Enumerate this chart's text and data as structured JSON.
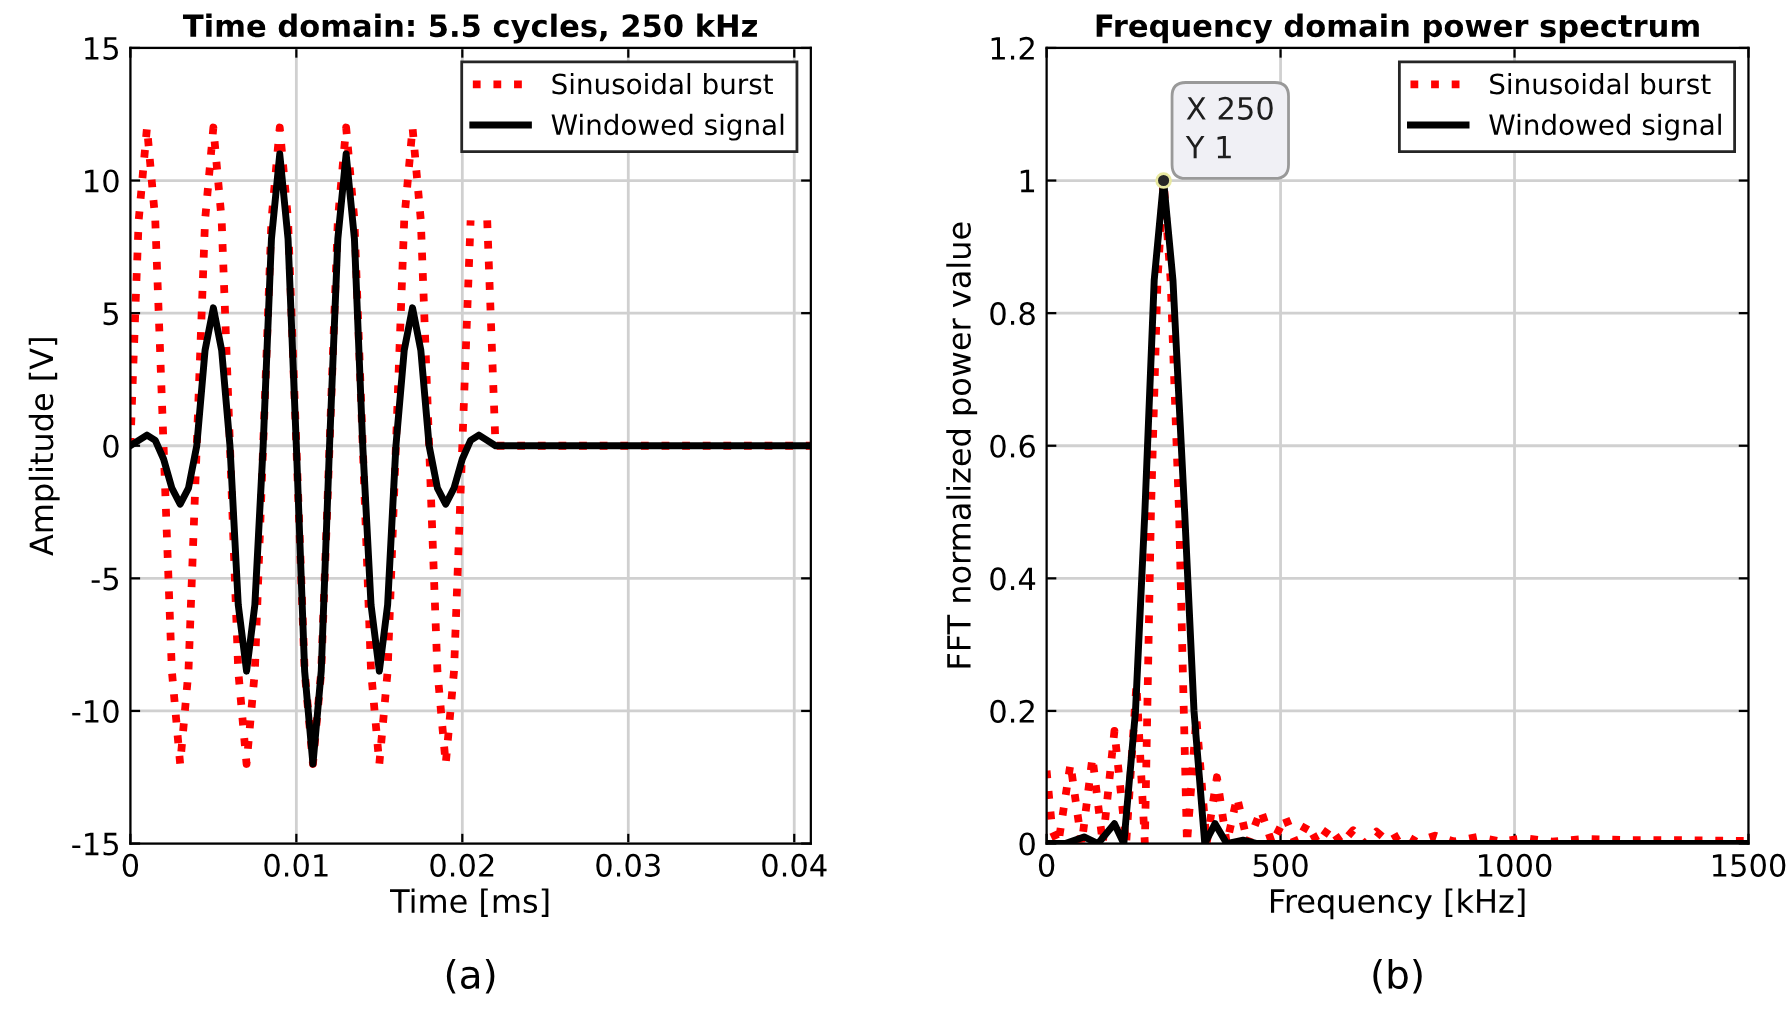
{
  "chart_data": [
    {
      "type": "line",
      "title": "Time domain: 5.5 cycles, 250 kHz",
      "xlabel": "Time [ms]",
      "ylabel": "Amplitude [V]",
      "xlim": [
        0,
        0.041
      ],
      "xticks": [
        0,
        0.01,
        0.02,
        0.03,
        0.04
      ],
      "ylim": [
        -15,
        15
      ],
      "yticks": [
        -15,
        -10,
        -5,
        0,
        5,
        10,
        15
      ],
      "grid": true,
      "legend": "top right",
      "annotations": [
        "(a)"
      ],
      "series": [
        {
          "name": "Sinusoidal burst",
          "color": "#ff0000",
          "line_style": "dotted",
          "x": [
            0,
            0.0005,
            0.001,
            0.0015,
            0.002,
            0.0025,
            0.003,
            0.0035,
            0.004,
            0.0045,
            0.005,
            0.0055,
            0.006,
            0.0065,
            0.007,
            0.0075,
            0.008,
            0.0085,
            0.009,
            0.0095,
            0.01,
            0.0105,
            0.011,
            0.0115,
            0.012,
            0.0125,
            0.013,
            0.0135,
            0.014,
            0.0145,
            0.015,
            0.0155,
            0.016,
            0.0165,
            0.017,
            0.0175,
            0.018,
            0.0185,
            0.019,
            0.0195,
            0.02,
            0.0205,
            0.021,
            0.0215,
            0.022,
            0.041
          ],
          "values": [
            0,
            8.5,
            12,
            8.5,
            0,
            -8.5,
            -12,
            -8.5,
            0,
            8.5,
            12,
            8.5,
            0,
            -8.5,
            -12,
            -8.5,
            0,
            8.5,
            12,
            8.5,
            0,
            -8.5,
            -12,
            -8.5,
            0,
            8.5,
            12,
            8.5,
            0,
            -8.5,
            -12,
            -8.5,
            0,
            8.5,
            12,
            8.5,
            0,
            -8.5,
            -12,
            -8.5,
            0,
            8.5,
            null,
            8.5,
            0,
            0
          ]
        },
        {
          "name": "Windowed signal",
          "color": "#000000",
          "line_style": "solid",
          "x": [
            0,
            0.0005,
            0.001,
            0.0015,
            0.002,
            0.0025,
            0.003,
            0.0035,
            0.004,
            0.0045,
            0.005,
            0.0055,
            0.006,
            0.0065,
            0.007,
            0.0075,
            0.008,
            0.0085,
            0.009,
            0.0095,
            0.01,
            0.0105,
            0.011,
            0.0115,
            0.012,
            0.0125,
            0.013,
            0.0135,
            0.014,
            0.0145,
            0.015,
            0.0155,
            0.016,
            0.0165,
            0.017,
            0.0175,
            0.018,
            0.0185,
            0.019,
            0.0195,
            0.02,
            0.0205,
            0.021,
            0.0215,
            0.022,
            0.041
          ],
          "values": [
            0,
            0.2,
            0.4,
            0.2,
            -0.5,
            -1.6,
            -2.2,
            -1.6,
            0,
            3.6,
            5.2,
            3.6,
            0,
            -6,
            -8.5,
            -6,
            0,
            7.8,
            11,
            7.8,
            0,
            -8.5,
            -12,
            -8.5,
            0,
            7.8,
            11,
            7.8,
            0,
            -6,
            -8.5,
            -6,
            0,
            3.6,
            5.2,
            3.6,
            0,
            -1.6,
            -2.2,
            -1.6,
            -0.5,
            0.2,
            0.4,
            0.2,
            0,
            0
          ]
        }
      ]
    },
    {
      "type": "line",
      "title": "Frequency domain power spectrum",
      "xlabel": "Frequency [kHz]",
      "ylabel": "FFT normalized power value",
      "xlim": [
        0,
        1500
      ],
      "xticks": [
        0,
        500,
        1000,
        1500
      ],
      "ylim": [
        0,
        1.2
      ],
      "yticks": [
        0,
        0.2,
        0.4,
        0.6,
        0.8,
        1,
        1.2
      ],
      "grid": true,
      "legend": "top right",
      "annotations": [
        {
          "text": "X 250\nY 1",
          "x": 250,
          "y": 1
        },
        "(b)"
      ],
      "series": [
        {
          "name": "Sinusoidal burst",
          "color": "#ff0000",
          "line_style": "dotted",
          "x": [
            0,
            12,
            25,
            51,
            75,
            98,
            120,
            145,
            170,
            192,
            210,
            223,
            237,
            250,
            265,
            283,
            300,
            320,
            342,
            364,
            385,
            407,
            430,
            458,
            482,
            510,
            533,
            557,
            580,
            605,
            630,
            655,
            680,
            705,
            730,
            760,
            790,
            830,
            870,
            920,
            970,
            1020,
            1080,
            1150,
            1250,
            1350,
            1500
          ],
          "values": [
            0.11,
            0.02,
            0,
            0.12,
            0,
            0.13,
            0,
            0.17,
            0,
            0.24,
            0,
            0.5,
            0.85,
            1,
            0.85,
            0.5,
            0,
            0.19,
            0,
            0.1,
            0,
            0.07,
            0,
            0.05,
            0,
            0.04,
            0,
            0.03,
            0,
            0.025,
            0,
            0.02,
            0,
            0.018,
            0.003,
            0.015,
            0.003,
            0.012,
            0.003,
            0.01,
            0.003,
            0.008,
            0.003,
            0.007,
            0.005,
            0.005,
            0.004
          ]
        },
        {
          "name": "Windowed signal",
          "color": "#000000",
          "line_style": "solid",
          "x": [
            0,
            40,
            80,
            110,
            145,
            165,
            190,
            210,
            230,
            250,
            270,
            295,
            315,
            338,
            360,
            385,
            420,
            450,
            1500
          ],
          "values": [
            0,
            0,
            0.01,
            0,
            0.03,
            0,
            0.2,
            0.5,
            0.85,
            1,
            0.85,
            0.5,
            0.2,
            0,
            0.03,
            0,
            0.005,
            0,
            0
          ]
        }
      ]
    }
  ]
}
